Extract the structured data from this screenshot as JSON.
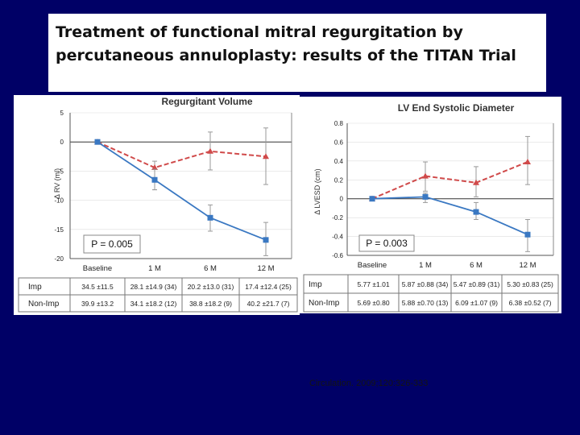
{
  "slide": {
    "title": "Treatment of functional mitral regurgitation by percutaneous annuloplasty: results of the TITAN Trial",
    "citation": "Circulation. 2009;120:326-333"
  },
  "colors": {
    "background": "#000066",
    "imp": "#3a78c2",
    "non_imp": "#d04a4a",
    "error_bar": "#999999"
  },
  "chart_data": [
    {
      "type": "line",
      "title": "Regurgitant Volume",
      "ylabel": "Δ RV (ml)",
      "categories": [
        "Baseline",
        "1 M",
        "6 M",
        "12 M"
      ],
      "ylim": [
        -20,
        5
      ],
      "yticks": [
        5,
        0,
        -5,
        -10,
        -15,
        -20
      ],
      "series": [
        {
          "name": "Imp",
          "style": "solid",
          "marker": "square",
          "values": [
            0,
            -6.5,
            -13,
            -16.8
          ],
          "err_lo": [
            0,
            -8.2,
            -15.3,
            -19.5
          ],
          "err_hi": [
            0,
            -4.7,
            -10.8,
            -13.8
          ]
        },
        {
          "name": "Non-Imp",
          "style": "dashed",
          "marker": "triangle",
          "values": [
            0,
            -4.4,
            -1.6,
            -2.5
          ],
          "err_lo": [
            0,
            -8.2,
            -4.8,
            -7.3
          ],
          "err_hi": [
            0,
            -3.3,
            1.7,
            2.4
          ]
        }
      ],
      "annotation": "P = 0.005",
      "table": [
        {
          "label": "Imp",
          "cells": [
            "34.5 ±11.5",
            "28.1 ±14.9 (34)",
            "20.2 ±13.0 (31)",
            "17.4 ±12.4 (25)"
          ]
        },
        {
          "label": "Non-Imp",
          "cells": [
            "39.9 ±13.2",
            "34.1 ±18.2 (12)",
            "38.8 ±18.2 (9)",
            "40.2 ±21.7 (7)"
          ]
        }
      ]
    },
    {
      "type": "line",
      "title": "LV End Systolic Diameter",
      "ylabel": "Δ LVESD (cm)",
      "categories": [
        "Baseline",
        "1 M",
        "6 M",
        "12 M"
      ],
      "ylim": [
        -0.6,
        0.8
      ],
      "yticks": [
        "0.8",
        "0.6",
        "0.4",
        "0.2",
        "0",
        "-0.2",
        "-0.4",
        "-0.6"
      ],
      "series": [
        {
          "name": "Imp",
          "style": "solid",
          "marker": "square",
          "values": [
            0,
            0.02,
            -0.14,
            -0.38
          ],
          "err_lo": [
            0,
            -0.04,
            -0.22,
            -0.56
          ],
          "err_hi": [
            0,
            0.06,
            -0.04,
            -0.22
          ]
        },
        {
          "name": "Non-Imp",
          "style": "dashed",
          "marker": "triangle",
          "values": [
            0,
            0.24,
            0.17,
            0.39
          ],
          "err_lo": [
            0,
            0.08,
            0.02,
            0.15
          ],
          "err_hi": [
            0,
            0.39,
            0.34,
            0.66
          ]
        }
      ],
      "annotation": "P = 0.003",
      "table": [
        {
          "label": "Imp",
          "cells": [
            "5.77 ±1.01",
            "5.87 ±0.88 (34)",
            "5.47 ±0.89 (31)",
            "5.30 ±0.83 (25)"
          ]
        },
        {
          "label": "Non-Imp",
          "cells": [
            "5.69 ±0.80",
            "5.88 ±0.70 (13)",
            "6.09 ±1.07 (9)",
            "6.38 ±0.52 (7)"
          ]
        }
      ]
    }
  ]
}
